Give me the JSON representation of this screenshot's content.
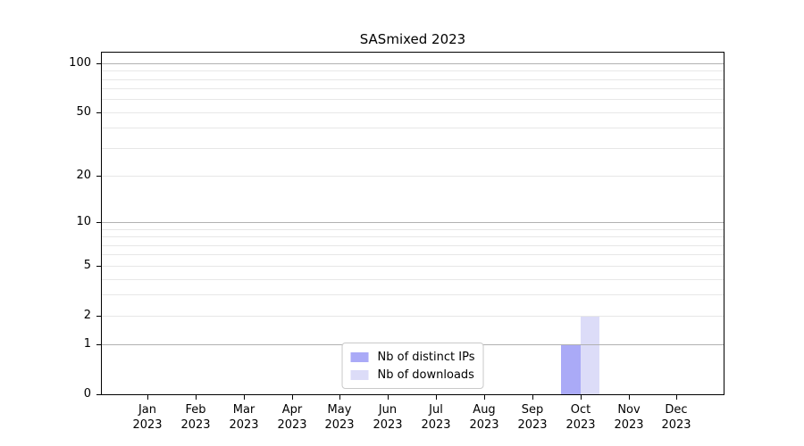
{
  "chart_data": {
    "type": "bar",
    "title": "SASmixed 2023",
    "categories": [
      "Jan",
      "Feb",
      "Mar",
      "Apr",
      "May",
      "Jun",
      "Jul",
      "Aug",
      "Sep",
      "Oct",
      "Nov",
      "Dec"
    ],
    "category_year": "2023",
    "series": [
      {
        "name": "Nb of distinct IPs",
        "color": "#aaaaf7",
        "values": [
          0,
          0,
          0,
          0,
          0,
          0,
          0,
          0,
          0,
          1,
          0,
          0
        ]
      },
      {
        "name": "Nb of downloads",
        "color": "#dcdcf8",
        "values": [
          0,
          0,
          0,
          0,
          0,
          0,
          0,
          0,
          0,
          2,
          0,
          0
        ]
      }
    ],
    "xlabel": "",
    "ylabel": "",
    "y_scale": "log1p",
    "ylim": [
      0,
      118
    ],
    "y_ticks": [
      0,
      1,
      2,
      5,
      10,
      20,
      50,
      100
    ],
    "y_major_grid": [
      1,
      10,
      100
    ],
    "y_minor_grid": [
      2,
      3,
      4,
      5,
      6,
      7,
      8,
      9,
      20,
      30,
      40,
      50,
      60,
      70,
      80,
      90
    ],
    "grid": true,
    "legend_position": "lower center",
    "colors": {
      "major_grid": "#b1b1b1",
      "minor_grid": "#e7e7e7",
      "axis": "#000000",
      "background": "#ffffff"
    }
  }
}
